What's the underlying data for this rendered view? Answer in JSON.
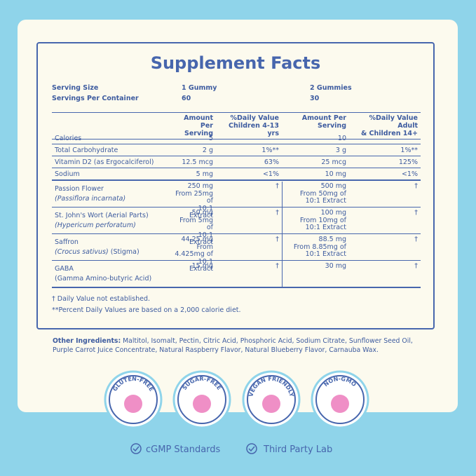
{
  "title": "Supplement Facts",
  "serving": [
    [
      "Serving Size",
      "1 Gummy",
      "2 Gummies"
    ],
    [
      "Servings Per Container",
      "60",
      "30"
    ]
  ],
  "headers": [
    "Amount Per\nServing",
    "%Daily Value\nChildren 4-13 yrs",
    "Amount Per\nServing",
    "%Daily Value Adult\n& Children 14+"
  ],
  "nutrients": [
    [
      "Calories",
      "5",
      "",
      "10",
      ""
    ],
    [
      "Total Carbohydrate",
      "2 g",
      "1%**",
      "3 g",
      "1%**"
    ],
    [
      "Vitamin D2 (as Ergocalciferol)",
      "12.5 mcg",
      "63%",
      "25 mcg",
      "125%"
    ],
    [
      "Sodium",
      "5 mg",
      "<1%",
      "10 mg",
      "<1%"
    ]
  ],
  "botanicals": [
    {
      "name": "Passion Flower",
      "latin": "(Passiflora incarnata)",
      "amount_1": "250 mg\nFrom 25mg of\n10:1 Extract",
      "dv_1": "†",
      "amount_2": "500 mg\nFrom 50mg of\n10:1 Extract",
      "dv_2": "†"
    },
    {
      "name": "St. John's Wort (Aerial Parts)",
      "latin": "(Hypericum perforatum)",
      "amount_1": "50 mg\nFrom 5mg of\n10:1 Extract",
      "dv_1": "†",
      "amount_2": "100 mg\nFrom 10mg of\n10:1 Extract",
      "dv_2": "†"
    },
    {
      "name": "Saffron",
      "latin": "(Crocus sativus)",
      "detail": "(Stigma)",
      "amount_1": "44.25 mg\nFrom 4.425mg of\n10:1 Extract",
      "dv_1": "†",
      "amount_2": "88.5 mg\nFrom 8.85mg of\n10:1 Extract",
      "dv_2": "†"
    },
    {
      "name": "GABA",
      "detail": "(Gamma Amino-butyric Acid)",
      "amount_1": "15 mg",
      "dv_1": "†",
      "amount_2": "30 mg",
      "dv_2": "†"
    }
  ],
  "footnotes": [
    "† Daily Value not established.",
    "**Percent Daily Values are based on a 2,000 calorie diet."
  ],
  "other_ingredients": {
    "label": "Other Ingredients:",
    "text": "Maltitol, Isomalt, Pectin, Citric Acid, Phosphoric Acid, Sodium Citrate, Sunflower Seed Oil, Purple Carrot Juice Concentrate, Natural Raspberry Flavor, Natural Blueberry Flavor, Carnauba Wax."
  },
  "badges": [
    "GLUTEN-FREE",
    "SUGAR-FREE",
    "VEGAN FRIENDLY",
    "NON-GMO"
  ],
  "footer": [
    "cGMP Standards",
    "Third Party Lab"
  ]
}
